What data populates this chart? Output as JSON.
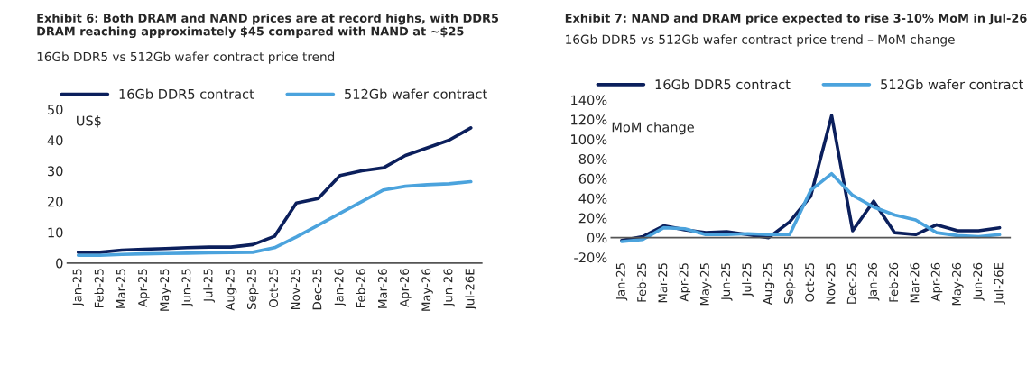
{
  "chart_data": [
    {
      "type": "line",
      "title": "Exhibit 6: Both DRAM and NAND prices are at record highs, with DDR5\nDRAM reaching approximately $45 compared with NAND at ~$25",
      "subtitle": "16Gb DDR5 vs 512Gb wafer contract price trend",
      "ylabel": "US$",
      "categories": [
        "Jan-25",
        "Feb-25",
        "Mar-25",
        "Apr-25",
        "May-25",
        "Jun-25",
        "Jul-25",
        "Aug-25",
        "Sep-25",
        "Oct-25",
        "Nov-25",
        "Dec-25",
        "Jan-26",
        "Feb-26",
        "Mar-26",
        "Apr-26",
        "May-26",
        "Jun-26",
        "Jul-26E"
      ],
      "series": [
        {
          "name": "16Gb DDR5 contract",
          "color": "#0b1f5c",
          "values": [
            3.5,
            3.5,
            4.2,
            4.5,
            4.7,
            5.0,
            5.2,
            5.2,
            6.0,
            8.7,
            19.5,
            21,
            28.5,
            30,
            31,
            35,
            37.5,
            40,
            44
          ]
        },
        {
          "name": "512Gb wafer contract",
          "color": "#4ba3dd",
          "values": [
            2.5,
            2.5,
            2.8,
            3.0,
            3.1,
            3.2,
            3.3,
            3.4,
            3.5,
            5.0,
            8.5,
            12.3,
            16.2,
            20,
            23.8,
            25,
            25.5,
            25.8,
            26.5
          ]
        }
      ],
      "ylim": [
        0,
        50
      ],
      "yticks": [
        0,
        10,
        20,
        30,
        40,
        50
      ],
      "grid": false,
      "legend": "top",
      "marker": "none",
      "line_style": "solid"
    },
    {
      "type": "line",
      "title": "Exhibit 7: NAND and DRAM price expected to rise 3-10% MoM in Jul-26",
      "subtitle": "16Gb DDR5 vs 512Gb wafer contract price trend – MoM change",
      "ylabel": "MoM change",
      "categories": [
        "Jan-25",
        "Feb-25",
        "Mar-25",
        "Apr-25",
        "May-25",
        "Jun-25",
        "Jul-25",
        "Aug-25",
        "Sep-25",
        "Oct-25",
        "Nov-25",
        "Dec-25",
        "Jan-26",
        "Feb-26",
        "Mar-26",
        "Apr-26",
        "May-26",
        "Jun-26",
        "Jul-26E"
      ],
      "series": [
        {
          "name": "16Gb DDR5 contract",
          "color": "#0b1f5c",
          "values": [
            -3,
            1,
            12,
            8,
            5,
            6,
            3,
            0,
            16,
            42,
            124,
            7,
            37,
            5,
            3,
            13,
            7,
            7,
            10
          ]
        },
        {
          "name": "512Gb wafer contract",
          "color": "#4ba3dd",
          "values": [
            -4,
            -2,
            10,
            9,
            3,
            3,
            4,
            3,
            3,
            48,
            65,
            43,
            31,
            23,
            18,
            5,
            2,
            1,
            3
          ]
        }
      ],
      "ylim": [
        -20,
        140
      ],
      "yticks": [
        {
          "value": -20,
          "label": "-20%"
        },
        {
          "value": 0,
          "label": "0%"
        },
        {
          "value": 20,
          "label": "20%"
        },
        {
          "value": 40,
          "label": "40%"
        },
        {
          "value": 60,
          "label": "60%"
        },
        {
          "value": 80,
          "label": "80%"
        },
        {
          "value": 100,
          "label": "100%"
        },
        {
          "value": 120,
          "label": "120%"
        },
        {
          "value": 140,
          "label": "140%"
        }
      ],
      "grid": false,
      "legend": "top",
      "marker": "none",
      "line_style": "solid"
    }
  ]
}
